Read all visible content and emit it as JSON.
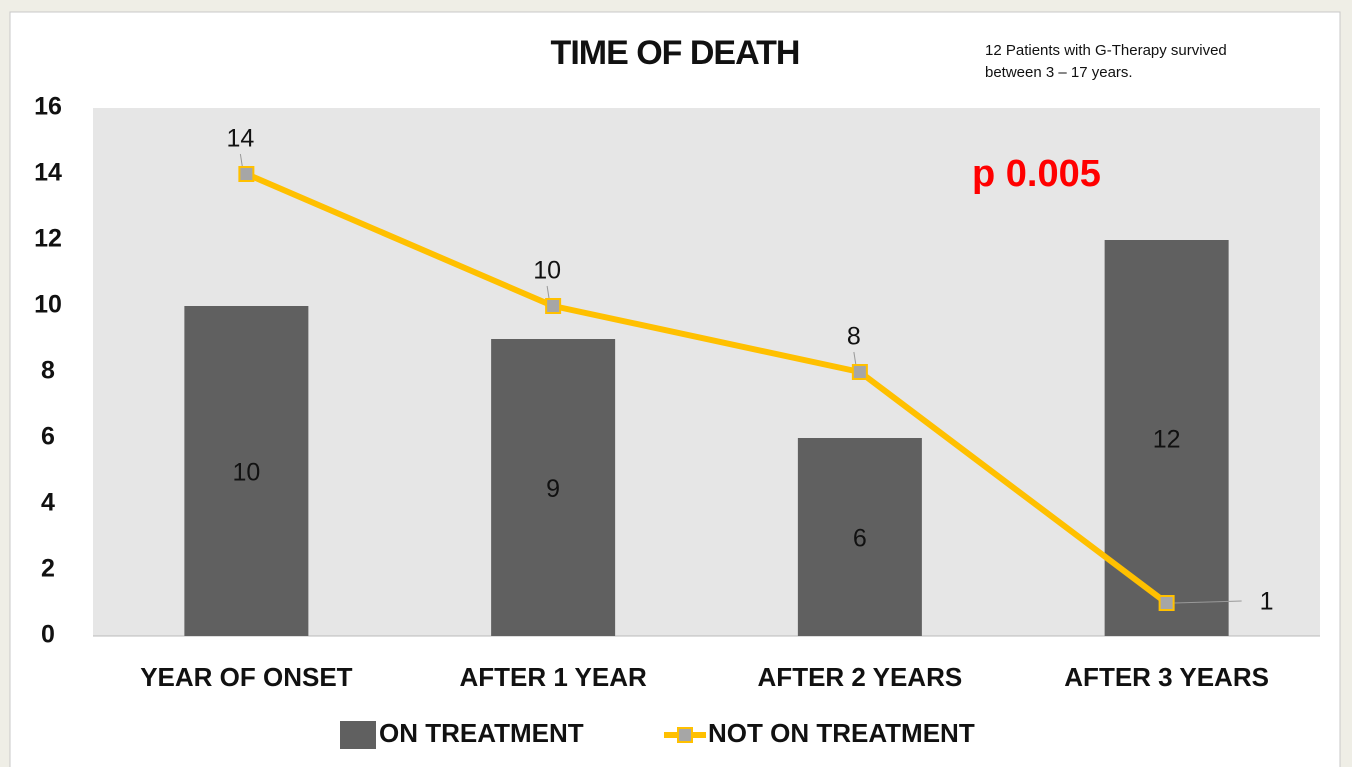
{
  "chart_data": {
    "type": "bar_line",
    "title": "TIME OF DEATH",
    "annotation": [
      "12 Patients with G-Therapy survived",
      "between 3 – 17 years."
    ],
    "p_value": "p 0.005",
    "categories": [
      "YEAR OF ONSET",
      "AFTER 1 YEAR",
      "AFTER 2 YEARS",
      "AFTER 3 YEARS"
    ],
    "series": [
      {
        "name": "ON TREATMENT",
        "type": "bar",
        "color": "#606060",
        "values": [
          10,
          9,
          6,
          12
        ]
      },
      {
        "name": "NOT ON TREATMENT",
        "type": "line",
        "color": "#ffc000",
        "values": [
          14,
          10,
          8,
          1
        ]
      }
    ],
    "ylim": [
      0,
      16
    ],
    "yticks": [
      0,
      2,
      4,
      6,
      8,
      10,
      12,
      14,
      16
    ],
    "grid": false,
    "legend": "bottom"
  }
}
